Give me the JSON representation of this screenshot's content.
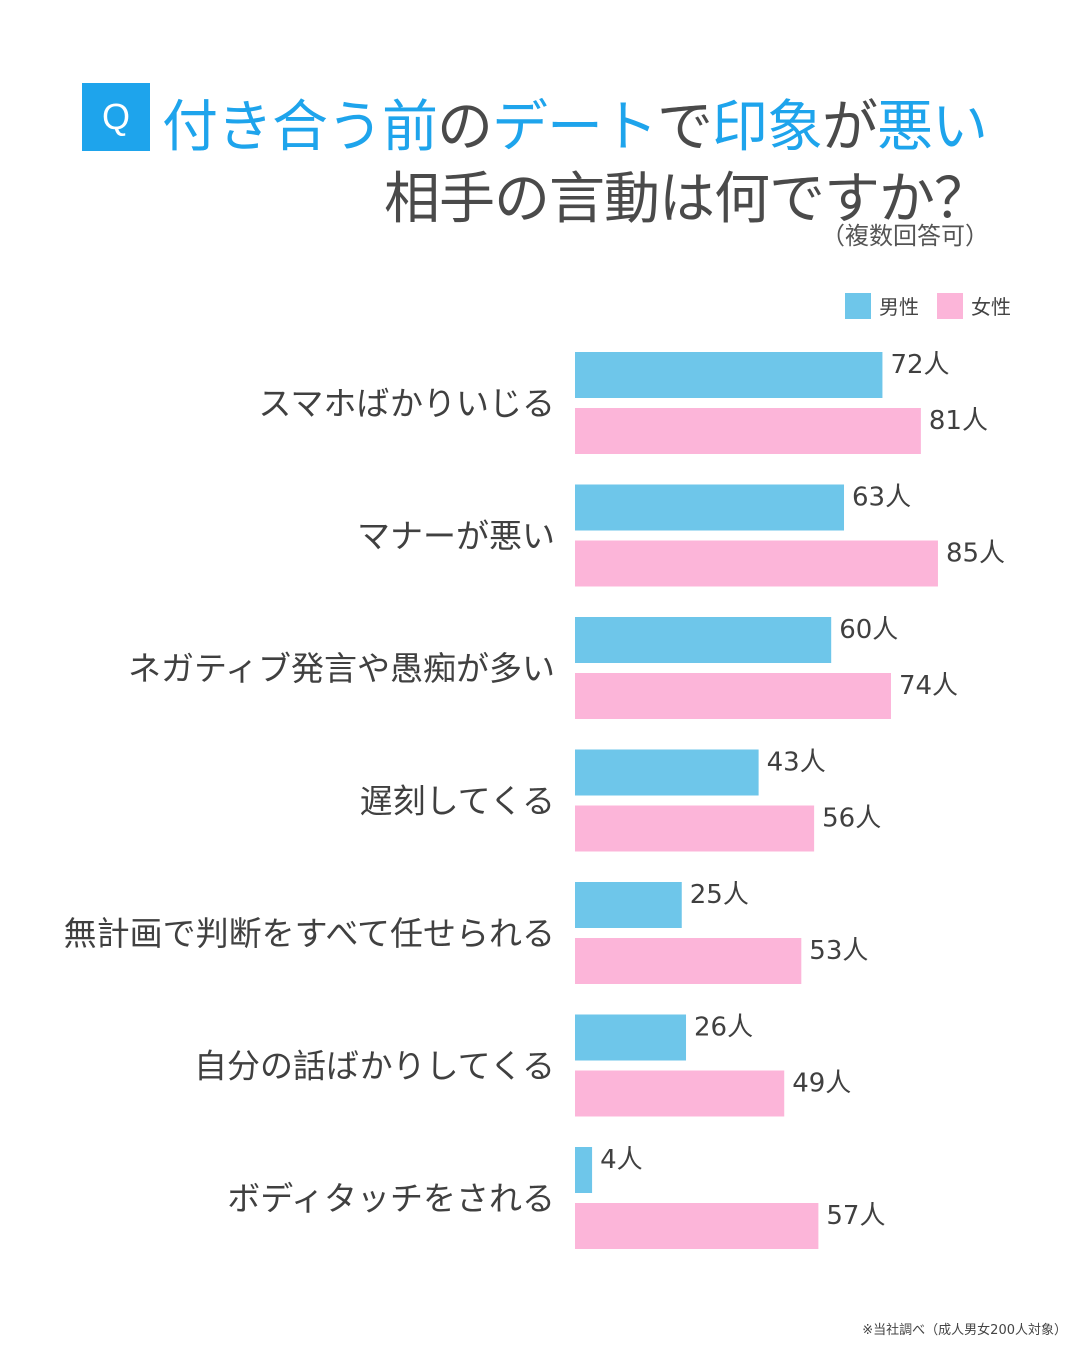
{
  "header": {
    "badge": "Q",
    "title_line1": [
      {
        "text": "付き合う前",
        "accent": true
      },
      {
        "text": "の",
        "accent": false
      },
      {
        "text": "デート",
        "accent": true
      },
      {
        "text": "で",
        "accent": false
      },
      {
        "text": "印象",
        "accent": true
      },
      {
        "text": "が",
        "accent": false
      },
      {
        "text": "悪い",
        "accent": true
      }
    ],
    "title_line2": "相手の言動は何ですか？",
    "note": "（複数回答可）"
  },
  "colors": {
    "accent": "#1ea4ec",
    "male": "#6ec6ea",
    "female": "#fcb5d9",
    "text": "#404040"
  },
  "footnote": "※当社調べ（成人男女200人対象）",
  "chart_data": {
    "type": "bar",
    "orientation": "horizontal",
    "categories": [
      "スマホばかりいじる",
      "マナーが悪い",
      "ネガティブ発言や愚痴が多い",
      "遅刻してくる",
      "無計画で判断をすべて任せられる",
      "自分の話ばかりしてくる",
      "ボディタッチをされる"
    ],
    "series": [
      {
        "name": "男性",
        "values": [
          72,
          63,
          60,
          43,
          25,
          26,
          4
        ],
        "color": "#6ec6ea"
      },
      {
        "name": "女性",
        "values": [
          81,
          85,
          74,
          56,
          53,
          49,
          57
        ],
        "color": "#fcb5d9"
      }
    ],
    "value_suffix": "人",
    "legend_position": "top-right",
    "grid": false,
    "axes_visible": false
  }
}
